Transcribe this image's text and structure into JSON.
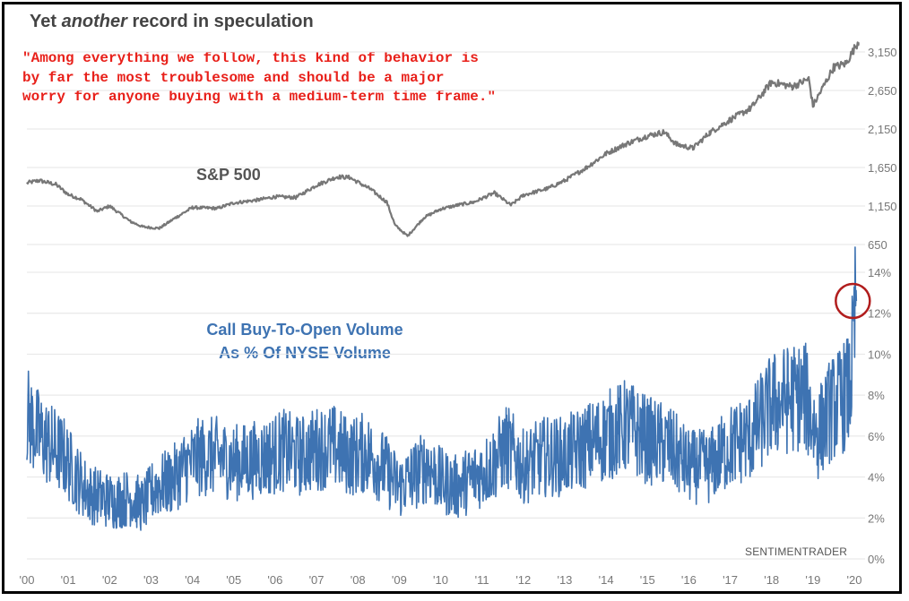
{
  "title_parts": {
    "pre": "Yet ",
    "em": "another",
    "post": " record in speculation"
  },
  "quote": "\"Among everything we follow, this kind of behavior is\nby far the most troublesome and should be a major\nworry for anyone buying with a medium-term time frame.\"",
  "watermark": "SENTIMENTRADER",
  "colors": {
    "sp500_line": "#777777",
    "call_line": "#3e73b2",
    "quote_text": "#e8201a",
    "highlight_circle": "#b11d1d",
    "grid": "#e4e4e4"
  },
  "chart_data": [
    {
      "type": "line",
      "label": "S&P 500",
      "x_range": [
        2000,
        2020
      ],
      "ylim": [
        650,
        3400
      ],
      "y_ticks": [
        "650",
        "1,150",
        "1,650",
        "2,150",
        "2,650",
        "3,150"
      ],
      "y_tick_values": [
        650,
        1150,
        1650,
        2150,
        2650,
        3150
      ],
      "x": [
        2000.0,
        2000.3,
        2000.7,
        2001.0,
        2001.3,
        2001.7,
        2002.0,
        2002.5,
        2002.8,
        2003.2,
        2003.6,
        2004.0,
        2004.6,
        2005.0,
        2005.6,
        2006.0,
        2006.5,
        2007.0,
        2007.5,
        2007.8,
        2008.3,
        2008.7,
        2008.9,
        2009.2,
        2009.6,
        2010.0,
        2010.4,
        2010.8,
        2011.3,
        2011.7,
        2012.0,
        2012.6,
        2013.0,
        2013.5,
        2014.0,
        2014.5,
        2015.0,
        2015.4,
        2015.7,
        2016.1,
        2016.5,
        2017.0,
        2017.5,
        2018.0,
        2018.5,
        2018.9,
        2019.0,
        2019.5,
        2019.8,
        2020.1
      ],
      "values": [
        1450,
        1480,
        1430,
        1300,
        1240,
        1080,
        1150,
        950,
        880,
        860,
        1000,
        1130,
        1120,
        1190,
        1230,
        1270,
        1260,
        1420,
        1530,
        1520,
        1370,
        1200,
        900,
        760,
        1000,
        1110,
        1160,
        1200,
        1320,
        1160,
        1290,
        1380,
        1480,
        1640,
        1830,
        1960,
        2060,
        2110,
        1950,
        1900,
        2100,
        2270,
        2420,
        2760,
        2700,
        2800,
        2450,
        2950,
        3000,
        3290
      ]
    },
    {
      "type": "line",
      "label": "Call Buy-To-Open Volume\nAs % Of NYSE Volume",
      "x_range": [
        2000,
        2020
      ],
      "ylim": [
        0,
        14
      ],
      "y_ticks": [
        "0%",
        "2%",
        "4%",
        "6%",
        "8%",
        "10%",
        "12%",
        "14%"
      ],
      "y_tick_values": [
        0,
        2,
        4,
        6,
        8,
        10,
        12,
        14
      ],
      "x_ticks": [
        "'00",
        "'01",
        "'02",
        "'03",
        "'04",
        "'05",
        "'06",
        "'07",
        "'08",
        "'09",
        "'10",
        "'11",
        "'12",
        "'13",
        "'14",
        "'15",
        "'16",
        "'17",
        "'18",
        "'19",
        "'20"
      ],
      "x": [
        2000.0,
        2000.3,
        2000.6,
        2000.9,
        2001.2,
        2001.5,
        2001.8,
        2002.1,
        2002.5,
        2002.8,
        2003.1,
        2003.5,
        2003.8,
        2004.2,
        2004.6,
        2005.0,
        2005.4,
        2005.8,
        2006.2,
        2006.6,
        2007.0,
        2007.4,
        2007.8,
        2008.2,
        2008.6,
        2009.0,
        2009.3,
        2009.7,
        2010.0,
        2010.4,
        2010.8,
        2011.2,
        2011.6,
        2012.0,
        2012.5,
        2013.0,
        2013.5,
        2014.0,
        2014.5,
        2015.0,
        2015.5,
        2016.0,
        2016.5,
        2017.0,
        2017.5,
        2018.0,
        2018.4,
        2018.8,
        2019.1,
        2019.4,
        2019.7,
        2019.9,
        2020.05
      ],
      "values": [
        7.0,
        6.0,
        5.5,
        5.0,
        4.0,
        3.2,
        3.0,
        2.8,
        3.0,
        2.6,
        3.5,
        3.8,
        4.5,
        5.0,
        5.0,
        4.7,
        4.8,
        5.0,
        5.3,
        5.0,
        5.4,
        5.5,
        5.0,
        5.2,
        4.5,
        3.5,
        4.0,
        4.6,
        3.8,
        3.5,
        4.0,
        4.5,
        5.5,
        4.5,
        5.0,
        5.0,
        5.5,
        6.0,
        6.5,
        5.8,
        5.5,
        4.5,
        4.5,
        5.5,
        6.0,
        7.5,
        7.8,
        8.0,
        6.0,
        7.2,
        7.8,
        8.3,
        12.6
      ]
    }
  ]
}
